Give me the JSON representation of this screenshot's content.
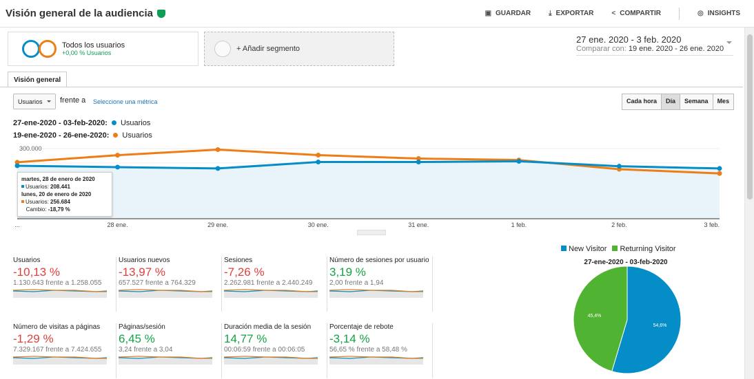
{
  "header": {
    "title": "Visión general de la audiencia",
    "actions": [
      "GUARDAR",
      "EXPORTAR",
      "COMPARTIR",
      "INSIGHTS"
    ]
  },
  "segment": {
    "name": "Todos los usuarios",
    "sub": "+0,00 % Usuarios",
    "add": "+ Añadir segmento"
  },
  "dates": {
    "range": "27 ene. 2020 - 3 feb. 2020",
    "compare_label": "Comparar con:",
    "compare": "19 ene. 2020 - 26 ene. 2020"
  },
  "tab": "Visión general",
  "controls": {
    "metric": "Usuarios",
    "vs": "frente a",
    "pick": "Seleccione una métrica",
    "granularity": [
      "Cada hora",
      "Día",
      "Semana",
      "Mes"
    ],
    "active": "Día"
  },
  "legend": [
    {
      "range": "27-ene-2020 - 03-feb-2020:",
      "name": "Usuarios",
      "color": "#058dc7"
    },
    {
      "range": "19-ene-2020 - 26-ene-2020:",
      "name": "Usuarios",
      "color": "#ed7e17"
    }
  ],
  "tooltip": {
    "d1": "martes, 28 de enero de 2020",
    "l1": "Usuarios:",
    "v1": "208.441",
    "d2": "lunes, 20 de enero de 2020",
    "l2": "Usuarios:",
    "v2": "256.684",
    "cl": "Cambio:",
    "cv": "-18,79 %"
  },
  "chart_data": {
    "type": "line",
    "categories": [
      "...",
      "28 ene.",
      "29 ene.",
      "30 ene.",
      "31 ene.",
      "1 feb.",
      "2 feb.",
      "3 feb."
    ],
    "ytick": "300.000",
    "ylim": [
      0,
      300000
    ],
    "series": [
      {
        "values": [
          214000,
          208441,
          203000,
          229000,
          229000,
          232000,
          212000,
          203000
        ],
        "color": "#058dc7"
      },
      {
        "values": [
          228000,
          256684,
          279000,
          257000,
          243000,
          237000,
          200000,
          183000
        ],
        "color": "#ed7e17"
      }
    ]
  },
  "cards": [
    {
      "label": "Usuarios",
      "pct": "-10,13 %",
      "cmp": "1.130.643 frente a 1.258.055",
      "neg": true
    },
    {
      "label": "Usuarios nuevos",
      "pct": "-13,97 %",
      "cmp": "657.527 frente a 764.329",
      "neg": true
    },
    {
      "label": "Sesiones",
      "pct": "-7,26 %",
      "cmp": "2.262.981 frente a 2.440.249",
      "neg": true
    },
    {
      "label": "Número de sesiones por usuario",
      "pct": "3,19 %",
      "cmp": "2,00 frente a 1,94",
      "neg": false
    },
    {
      "label": "Número de visitas a páginas",
      "pct": "-1,29 %",
      "cmp": "7.329.167 frente a 7.424.655",
      "neg": true
    },
    {
      "label": "Páginas/sesión",
      "pct": "6,45 %",
      "cmp": "3,24 frente a 3,04",
      "neg": false
    },
    {
      "label": "Duración media de la sesión",
      "pct": "14,77 %",
      "cmp": "00:06:59 frente a 00:06:05",
      "neg": false
    },
    {
      "label": "Porcentaje de rebote",
      "pct": "-3,14 %",
      "cmp": "56,65 % frente a 58,48 %",
      "neg": true
    }
  ],
  "pie": {
    "title": "27-ene-2020 - 03-feb-2020",
    "slices": [
      {
        "name": "New Visitor",
        "value": 54.6,
        "label": "54,6%",
        "color": "#058dc7"
      },
      {
        "name": "Returning Visitor",
        "value": 45.4,
        "label": "45,4%",
        "color": "#50b432"
      }
    ]
  }
}
